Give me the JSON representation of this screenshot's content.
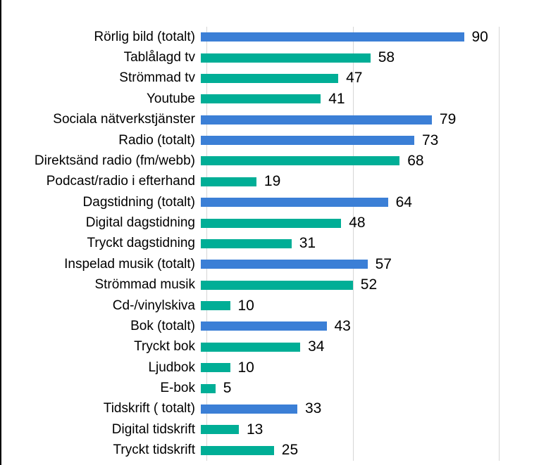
{
  "chart_data": {
    "type": "bar",
    "orientation": "horizontal",
    "title": "",
    "xlabel": "",
    "ylabel": "",
    "xlim": [
      0,
      100
    ],
    "gridlines_x": [
      0,
      50,
      100
    ],
    "grid": "vertical-only",
    "legend": "none",
    "value_labels": "end-of-bar",
    "categories": [
      "Rörlig bild (totalt)",
      "Tablålagd tv",
      "Strömmad tv",
      "Youtube",
      "Sociala nätverkstjänster",
      "Radio (totalt)",
      "Direktsänd radio (fm/webb)",
      "Podcast/radio i efterhand",
      "Dagstidning (totalt)",
      "Digital dagstidning",
      "Tryckt dagstidning",
      "Inspelad musik (totalt)",
      "Strömmad musik",
      "Cd-/vinylskiva",
      "Bok (totalt)",
      "Tryckt bok",
      "Ljudbok",
      "E-bok",
      "Tidskrift ( totalt)",
      "Digital tidskrift",
      "Tryckt tidskrift"
    ],
    "values": [
      90,
      58,
      47,
      41,
      79,
      73,
      68,
      19,
      64,
      48,
      31,
      57,
      52,
      10,
      43,
      34,
      10,
      5,
      33,
      13,
      25
    ],
    "bar_color_keys": [
      "blue",
      "teal",
      "teal",
      "teal",
      "blue",
      "blue",
      "teal",
      "teal",
      "blue",
      "teal",
      "teal",
      "blue",
      "teal",
      "teal",
      "blue",
      "teal",
      "teal",
      "teal",
      "blue",
      "teal",
      "teal"
    ],
    "colors": {
      "blue": "#3b7fd6",
      "teal": "#00ae96",
      "gridline": "#d6d6d6",
      "text": "#000000",
      "frame_line": "#000000"
    }
  }
}
